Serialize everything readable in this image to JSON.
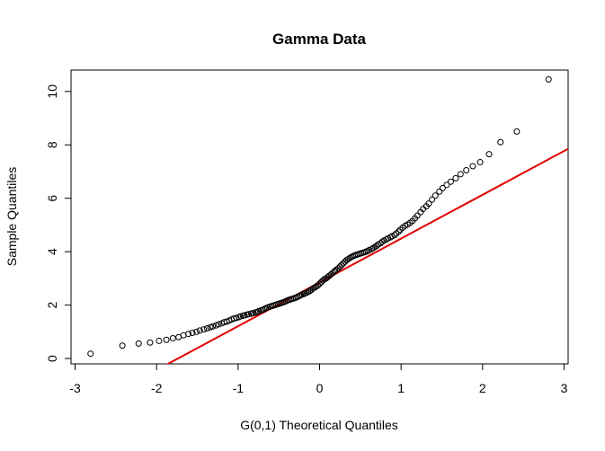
{
  "chart_data": {
    "type": "scatter",
    "title": "Gamma Data",
    "xlabel": "G(0,1) Theoretical Quantiles",
    "ylabel": "Sample Quantiles",
    "xlim": [
      -3.05,
      3.05
    ],
    "ylim": [
      -0.2,
      10.8
    ],
    "x_ticks": [
      -3,
      -2,
      -1,
      0,
      1,
      2,
      3
    ],
    "y_ticks": [
      0,
      2,
      4,
      6,
      8,
      10
    ],
    "x_tick_labels": [
      "-3",
      "-2",
      "-1",
      "0",
      "1",
      "2",
      "3"
    ],
    "y_tick_labels": [
      "0",
      "2",
      "4",
      "6",
      "8",
      "10"
    ],
    "grid": false,
    "legend": "none",
    "point_style": "open-circle",
    "point_color": "#000000",
    "reference_line": {
      "color": "#e00000",
      "intercept": 2.85,
      "slope": 1.64
    },
    "points_x": [
      -2.81,
      -2.42,
      -2.22,
      -2.08,
      -1.97,
      -1.88,
      -1.8,
      -1.73,
      -1.67,
      -1.61,
      -1.56,
      -1.51,
      -1.47,
      -1.42,
      -1.38,
      -1.34,
      -1.31,
      -1.27,
      -1.24,
      -1.2,
      -1.17,
      -1.14,
      -1.11,
      -1.08,
      -1.05,
      -1.02,
      -0.99,
      -0.97,
      -0.94,
      -0.92,
      -0.89,
      -0.87,
      -0.84,
      -0.82,
      -0.79,
      -0.77,
      -0.75,
      -0.72,
      -0.7,
      -0.68,
      -0.66,
      -0.64,
      -0.61,
      -0.59,
      -0.57,
      -0.55,
      -0.53,
      -0.51,
      -0.49,
      -0.47,
      -0.45,
      -0.43,
      -0.41,
      -0.39,
      -0.37,
      -0.35,
      -0.33,
      -0.31,
      -0.29,
      -0.27,
      -0.25,
      -0.23,
      -0.21,
      -0.19,
      -0.18,
      -0.16,
      -0.14,
      -0.12,
      -0.1,
      -0.08,
      -0.06,
      -0.04,
      -0.02,
      0.0,
      0.02,
      0.04,
      0.06,
      0.08,
      0.1,
      0.12,
      0.14,
      0.16,
      0.18,
      0.19,
      0.21,
      0.23,
      0.25,
      0.27,
      0.29,
      0.31,
      0.33,
      0.35,
      0.37,
      0.39,
      0.41,
      0.43,
      0.45,
      0.47,
      0.49,
      0.51,
      0.53,
      0.55,
      0.57,
      0.59,
      0.61,
      0.64,
      0.66,
      0.68,
      0.7,
      0.72,
      0.75,
      0.77,
      0.79,
      0.82,
      0.84,
      0.87,
      0.89,
      0.92,
      0.94,
      0.97,
      0.99,
      1.02,
      1.05,
      1.08,
      1.11,
      1.14,
      1.17,
      1.2,
      1.24,
      1.27,
      1.31,
      1.34,
      1.38,
      1.42,
      1.47,
      1.51,
      1.56,
      1.61,
      1.67,
      1.73,
      1.8,
      1.88,
      1.97,
      2.08,
      2.22,
      2.42,
      2.81
    ],
    "points_y": [
      0.18,
      0.48,
      0.56,
      0.6,
      0.66,
      0.7,
      0.76,
      0.8,
      0.87,
      0.92,
      0.96,
      1.0,
      1.05,
      1.09,
      1.13,
      1.17,
      1.2,
      1.24,
      1.28,
      1.32,
      1.36,
      1.38,
      1.42,
      1.46,
      1.5,
      1.52,
      1.55,
      1.58,
      1.6,
      1.62,
      1.64,
      1.66,
      1.68,
      1.7,
      1.72,
      1.74,
      1.77,
      1.8,
      1.82,
      1.85,
      1.88,
      1.91,
      1.94,
      1.96,
      1.98,
      2.0,
      2.02,
      2.04,
      2.06,
      2.08,
      2.1,
      2.12,
      2.15,
      2.18,
      2.2,
      2.22,
      2.24,
      2.26,
      2.28,
      2.31,
      2.34,
      2.37,
      2.4,
      2.42,
      2.44,
      2.46,
      2.49,
      2.53,
      2.57,
      2.62,
      2.66,
      2.7,
      2.74,
      2.8,
      2.86,
      2.92,
      2.97,
      3.0,
      3.05,
      3.1,
      3.15,
      3.2,
      3.25,
      3.29,
      3.33,
      3.38,
      3.44,
      3.5,
      3.56,
      3.62,
      3.68,
      3.72,
      3.76,
      3.8,
      3.83,
      3.86,
      3.88,
      3.9,
      3.92,
      3.94,
      3.96,
      3.98,
      4.0,
      4.03,
      4.06,
      4.1,
      4.14,
      4.18,
      4.22,
      4.27,
      4.32,
      4.37,
      4.42,
      4.46,
      4.5,
      4.54,
      4.58,
      4.62,
      4.68,
      4.75,
      4.82,
      4.9,
      4.97,
      5.02,
      5.08,
      5.15,
      5.25,
      5.35,
      5.48,
      5.6,
      5.7,
      5.8,
      5.95,
      6.1,
      6.25,
      6.38,
      6.5,
      6.62,
      6.75,
      6.9,
      7.05,
      7.2,
      7.35,
      7.65,
      8.1,
      8.5,
      10.45
    ]
  }
}
